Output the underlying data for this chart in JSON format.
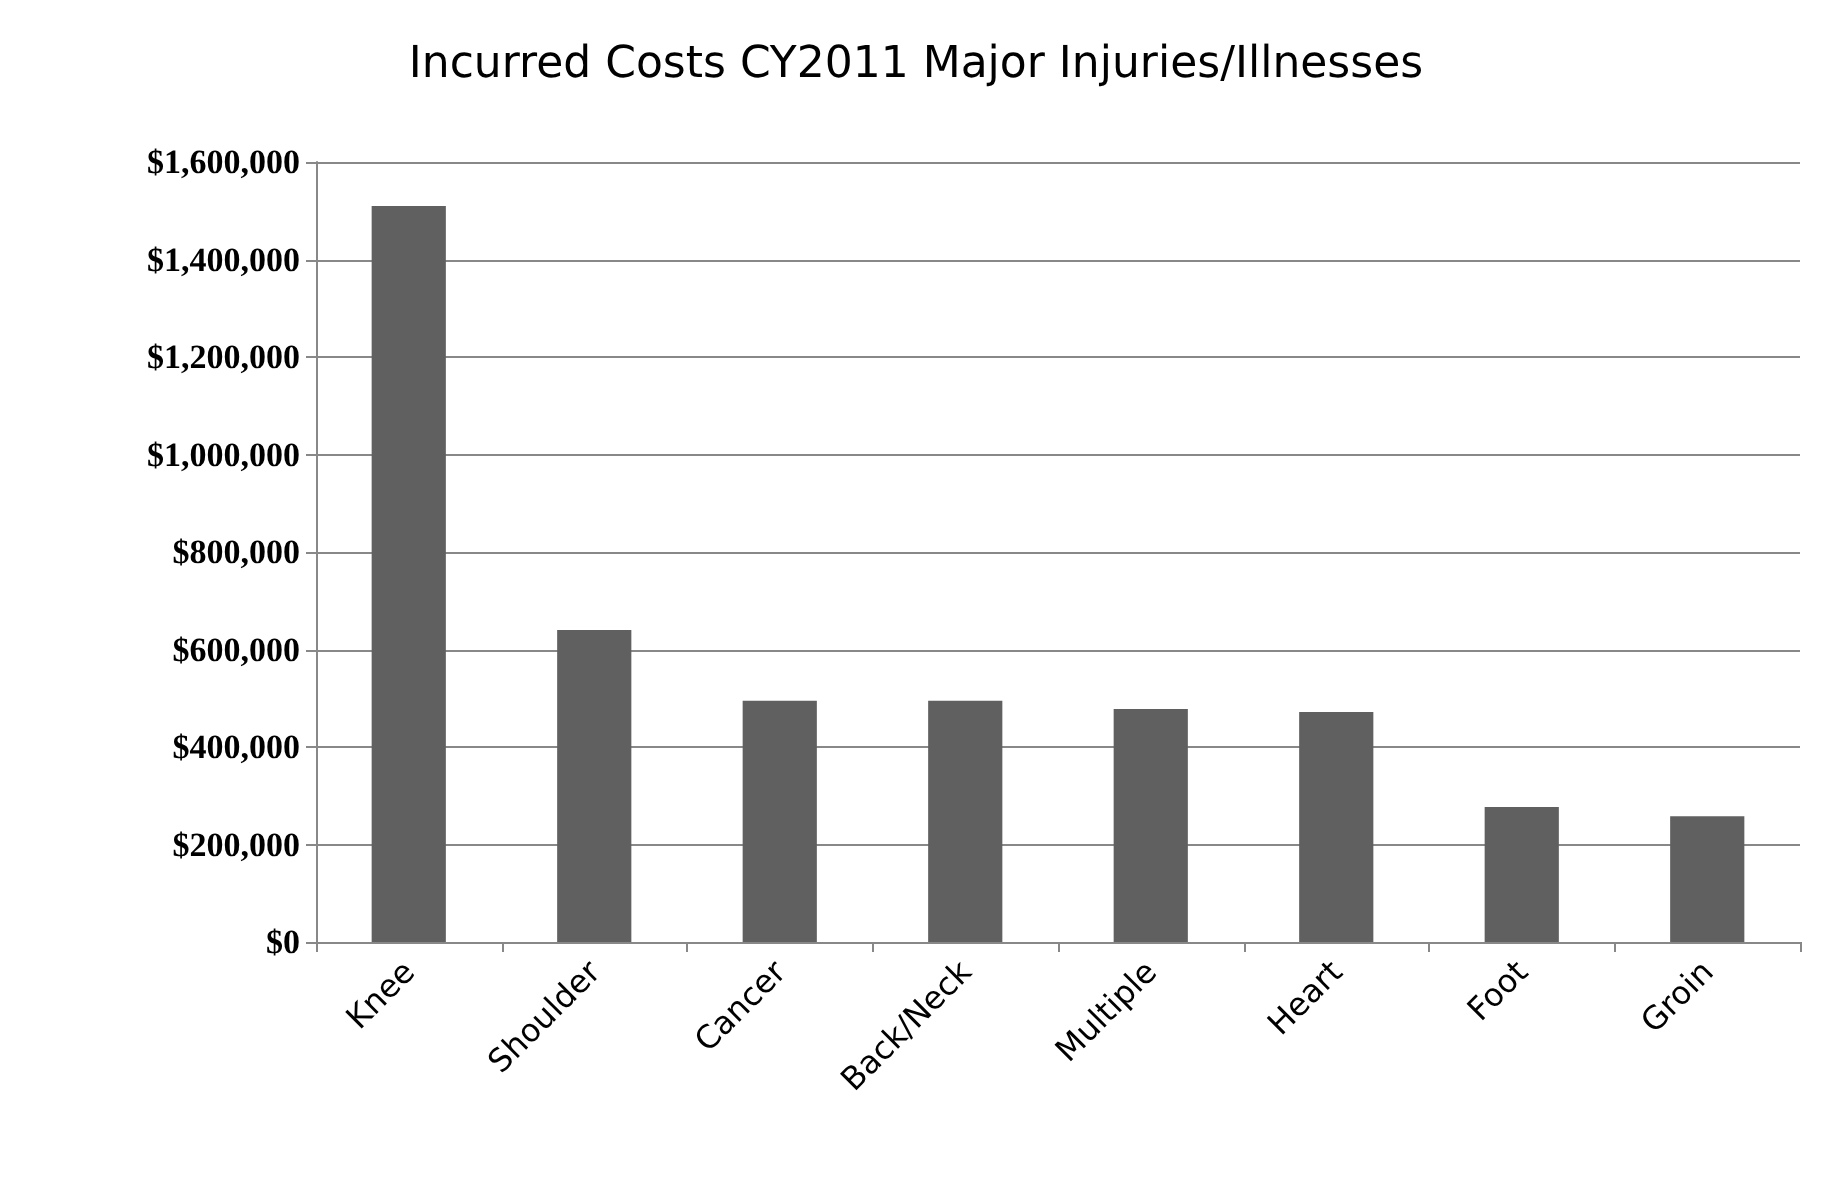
{
  "chart_data": {
    "type": "bar",
    "title": "Incurred Costs CY2011 Major Injuries/Illnesses",
    "categories": [
      "Knee",
      "Shoulder",
      "Cancer",
      "Back/Neck",
      "Multiple",
      "Heart",
      "Foot",
      "Groin"
    ],
    "values": [
      1510000,
      640000,
      495000,
      495000,
      478000,
      472000,
      277000,
      258000
    ],
    "color": "#606060",
    "ylim": [
      0,
      1600000
    ],
    "yticks": [
      {
        "value": 0,
        "label": "$0"
      },
      {
        "value": 200000,
        "label": "$200,000"
      },
      {
        "value": 400000,
        "label": "$400,000"
      },
      {
        "value": 600000,
        "label": "$600,000"
      },
      {
        "value": 800000,
        "label": "$800,000"
      },
      {
        "value": 1000000,
        "label": "$1,000,000"
      },
      {
        "value": 1200000,
        "label": "$1,200,000"
      },
      {
        "value": 1400000,
        "label": "$1,400,000"
      },
      {
        "value": 1600000,
        "label": "$1,600,000"
      }
    ],
    "grid": "y"
  }
}
